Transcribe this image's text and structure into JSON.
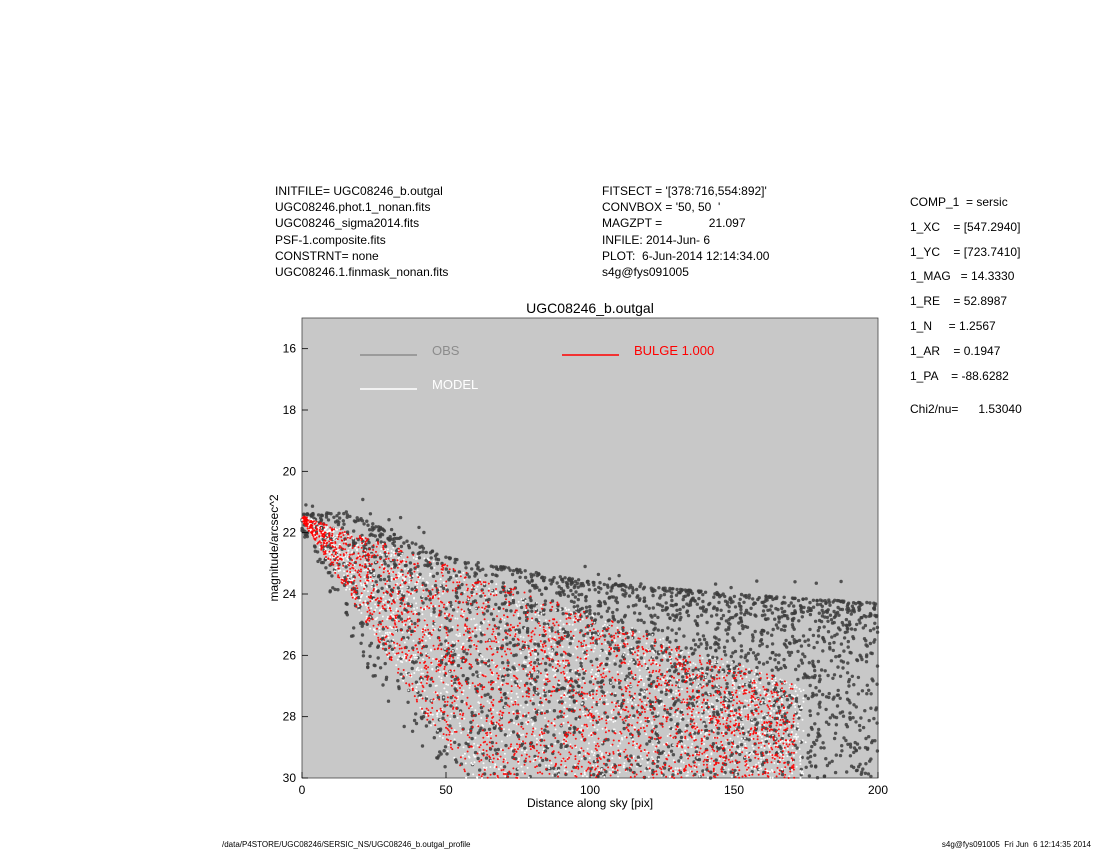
{
  "header": {
    "left": [
      "INITFILE= UGC08246_b.outgal",
      "UGC08246.phot.1_nonan.fits",
      "UGC08246_sigma2014.fits",
      "PSF-1.composite.fits",
      "CONSTRNT= none",
      "UGC08246.1.finmask_nonan.fits"
    ],
    "middle": [
      "FITSECT = '[378:716,554:892]'",
      "CONVBOX = '50, 50  '",
      "MAGZPT =              21.097",
      "INFILE: 2014-Jun- 6",
      "PLOT:  6-Jun-2014 12:14:34.00",
      "s4g@fys091005"
    ],
    "params": [
      "COMP_1  = sersic",
      "1_XC    = [547.2940]",
      "1_YC    = [723.7410]",
      "1_MAG   = 14.3330",
      "1_RE    = 52.8987",
      "1_N     = 1.2567",
      "1_AR    = 0.1947",
      "1_PA    = -88.6282"
    ],
    "chi": "Chi2/nu=      1.53040"
  },
  "footer": {
    "left": "/data/P4STORE/UGC08246/SERSIC_NS/UGC08246_b.outgal_profile",
    "right": "s4g@fys091005  Fri Jun  6 12:14:35 2014"
  },
  "chart_data": {
    "type": "scatter",
    "title": "UGC08246_b.outgal",
    "xlabel": "Distance along sky [pix]",
    "ylabel": "magnitude/arcsec^2",
    "xlim": [
      0,
      200
    ],
    "ylim": [
      30,
      15
    ],
    "y_inverted": true,
    "xticks": [
      0,
      50,
      100,
      150,
      200
    ],
    "yticks": [
      16,
      18,
      20,
      22,
      24,
      26,
      28,
      30
    ],
    "background": "#c8c8c8",
    "legend": [
      {
        "label": "OBS",
        "color": "#8c8c8c"
      },
      {
        "label": "MODEL",
        "color": "#ffffff"
      },
      {
        "label": "BULGE  1.000",
        "color": "#ff0000"
      }
    ],
    "series": [
      {
        "name": "OBS",
        "color": "#3c3c3c",
        "x_range": [
          0,
          200
        ],
        "upper_edge": [
          [
            0,
            21.4
          ],
          [
            15,
            21.3
          ],
          [
            50,
            22.8
          ],
          [
            100,
            23.6
          ],
          [
            150,
            24.0
          ],
          [
            200,
            24.3
          ]
        ],
        "lower_edge": [
          [
            0,
            22.0
          ],
          [
            20,
            26.0
          ],
          [
            40,
            29.0
          ],
          [
            55,
            30.0
          ],
          [
            200,
            30.0
          ]
        ]
      },
      {
        "name": "MODEL",
        "color": "#ffffff",
        "x_range": [
          0,
          175
        ],
        "upper_edge": [
          [
            0,
            21.45
          ],
          [
            171,
            26.9
          ]
        ],
        "lower_edge": [
          [
            0,
            21.6
          ],
          [
            56,
            30.0
          ],
          [
            175,
            30.0
          ]
        ]
      },
      {
        "name": "BULGE  1.000",
        "color": "#ff0000",
        "x_range": [
          0,
          171
        ],
        "upper_edge": [
          [
            0,
            21.45
          ],
          [
            171,
            26.9
          ]
        ],
        "lower_edge": [
          [
            0,
            21.6
          ],
          [
            56,
            30.0
          ],
          [
            171,
            30.0
          ]
        ]
      }
    ]
  }
}
